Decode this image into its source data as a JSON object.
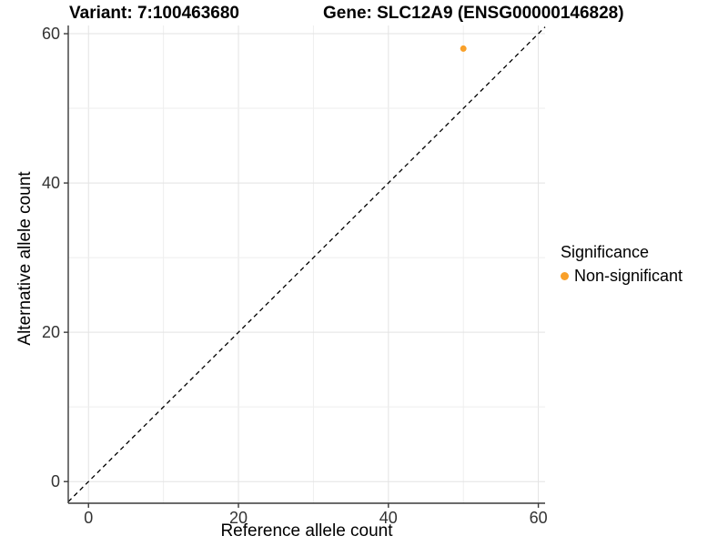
{
  "header": {
    "variant_title": "Variant: 7:100463680",
    "gene_title": "Gene: SLC12A9 (ENSG00000146828)"
  },
  "legend": {
    "title": "Significance",
    "items": [
      {
        "label": "Non-significant",
        "color": "#F9A029"
      }
    ]
  },
  "chart_data": {
    "type": "scatter",
    "title_left": "Variant: 7:100463680",
    "title_right": "Gene: SLC12A9 (ENSG00000146828)",
    "xlabel": "Reference allele count",
    "ylabel": "Alternative allele count",
    "xlim": [
      -2.7,
      60.9
    ],
    "ylim": [
      -2.9,
      61.1
    ],
    "xticks": [
      0,
      20,
      40,
      60
    ],
    "yticks": [
      0,
      20,
      40,
      60
    ],
    "grid": true,
    "grid_step": 10,
    "grid_color_major": "#e3e3e3",
    "grid_color_minor": "#eeeeee",
    "identity_line": {
      "slope": 1,
      "intercept": 0,
      "style": "dashed",
      "color": "#000000"
    },
    "series": [
      {
        "name": "Non-significant",
        "color": "#F9A029",
        "points": [
          {
            "x": 50,
            "y": 58
          }
        ]
      }
    ],
    "legend_title": "Significance",
    "legend_position": "right",
    "axis_line_color": "#3a3a3a",
    "tick_label_color": "#333333"
  }
}
